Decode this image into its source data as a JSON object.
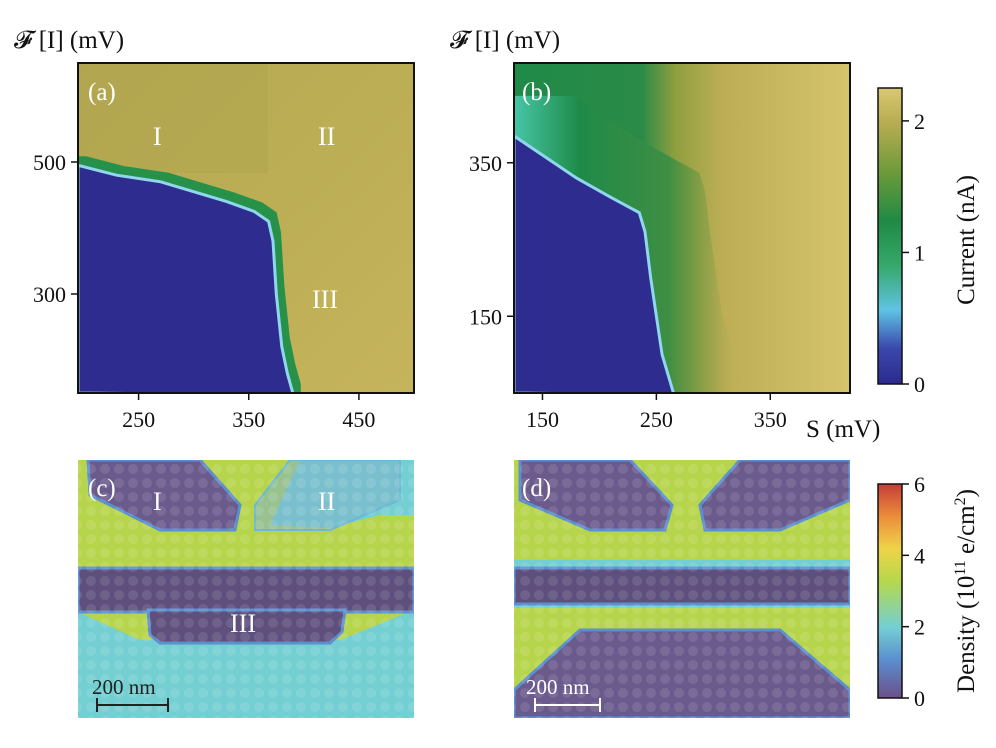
{
  "figure": {
    "ylabel_top_left": "𝓕 [I] (mV)",
    "ylabel_top_right": "𝓕 [I] (mV)",
    "xlabel": "S (mV)"
  },
  "colorbars": {
    "current": {
      "label": "Current (nA)",
      "ticks": [
        0,
        1,
        2
      ],
      "range": [
        0,
        2.25
      ],
      "colors": [
        "#2c2a8c",
        "#3d4fb0",
        "#5fc3e4",
        "#1f8f4a",
        "#6f9b3a",
        "#bfb055",
        "#d8c56a"
      ]
    },
    "density": {
      "label": "Density (10",
      "label_sup": "11",
      "label_unit": " e/cm",
      "label_sup2": "2",
      "label_end": ")",
      "ticks": [
        0,
        2,
        4,
        6
      ],
      "range": [
        0,
        6
      ],
      "colors": [
        "#6b4f8a",
        "#5aa0d8",
        "#7ed1cf",
        "#b8d94a",
        "#f0d34a",
        "#ee8a3c",
        "#c8403a"
      ]
    }
  },
  "chart_data": [
    {
      "type": "heatmap",
      "panel": "(a)",
      "regions": [
        "I",
        "II",
        "III"
      ],
      "x_ticks": [
        250,
        350,
        450
      ],
      "y_ticks": [
        300,
        500
      ],
      "xlim": [
        195,
        500
      ],
      "ylim": [
        150,
        650
      ],
      "zlabel": "Current (nA)",
      "boundary": [
        [
          195,
          495
        ],
        [
          230,
          480
        ],
        [
          270,
          470
        ],
        [
          300,
          455
        ],
        [
          330,
          440
        ],
        [
          355,
          425
        ],
        [
          368,
          410
        ],
        [
          372,
          380
        ],
        [
          375,
          300
        ],
        [
          380,
          220
        ],
        [
          385,
          180
        ],
        [
          390,
          150
        ]
      ],
      "vertical_edge_x": 370,
      "low_current": 0,
      "high_current": 2.0
    },
    {
      "type": "heatmap",
      "panel": "(b)",
      "x_ticks": [
        150,
        250,
        350
      ],
      "y_ticks": [
        150,
        350
      ],
      "xlim": [
        125,
        420
      ],
      "ylim": [
        50,
        480
      ],
      "zlabel": "Current (nA)",
      "boundary": [
        [
          125,
          385
        ],
        [
          150,
          360
        ],
        [
          180,
          330
        ],
        [
          210,
          305
        ],
        [
          235,
          285
        ],
        [
          240,
          260
        ],
        [
          245,
          200
        ],
        [
          250,
          150
        ],
        [
          255,
          100
        ],
        [
          265,
          50
        ]
      ],
      "low_current": 0,
      "high_current": 2.1
    }
  ],
  "density_panels": [
    {
      "panel": "(c)",
      "regions": [
        "I",
        "II",
        "III"
      ],
      "scalebar": "200 nm"
    },
    {
      "panel": "(d)",
      "scalebar": "200 nm"
    }
  ]
}
